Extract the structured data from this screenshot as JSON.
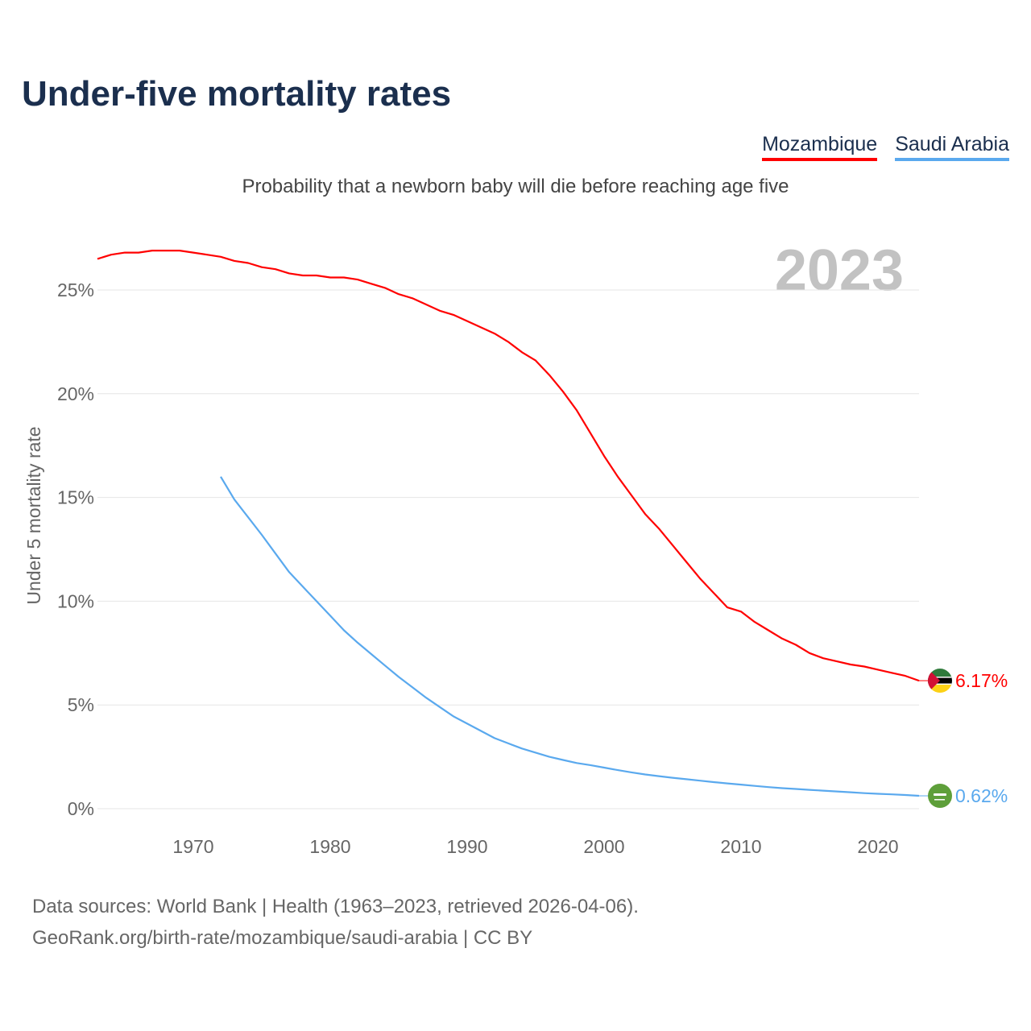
{
  "title": "Under-five mortality rates",
  "subtitle": "Probability that a newborn baby will die before reaching age five",
  "year_label": "2023",
  "footer": {
    "line1": "Data sources: World Bank | Health (1963–2023, retrieved 2026-04-06).",
    "line2": "GeoRank.org/birth-rate/mozambique/saudi-arabia | CC BY"
  },
  "chart_data": {
    "type": "line",
    "title": "Under-five mortality rates",
    "ylabel": "Under 5 mortality rate",
    "xlabel": "",
    "xlim": [
      1963,
      2023
    ],
    "ylim": [
      0,
      27
    ],
    "x_ticks": [
      1970,
      1980,
      1990,
      2000,
      2010,
      2020
    ],
    "y_ticks": [
      0,
      5,
      10,
      15,
      20,
      25
    ],
    "y_tick_labels": [
      "0%",
      "5%",
      "10%",
      "15%",
      "20%",
      "25%"
    ],
    "grid": true,
    "legend_position": "top-right",
    "series": [
      {
        "name": "Mozambique",
        "color": "#ff0000",
        "end_label": "6.17%",
        "start_year": 1963,
        "values": [
          26.5,
          26.7,
          26.8,
          26.8,
          26.9,
          26.9,
          26.9,
          26.8,
          26.7,
          26.6,
          26.4,
          26.3,
          26.1,
          26.0,
          25.8,
          25.7,
          25.7,
          25.6,
          25.6,
          25.5,
          25.3,
          25.1,
          24.8,
          24.6,
          24.3,
          24.0,
          23.8,
          23.5,
          23.2,
          22.9,
          22.5,
          22.0,
          21.6,
          20.9,
          20.1,
          19.2,
          18.1,
          17.0,
          16.0,
          15.1,
          14.2,
          13.5,
          12.7,
          11.9,
          11.1,
          10.4,
          9.7,
          9.5,
          9.0,
          8.6,
          8.2,
          7.9,
          7.5,
          7.25,
          7.1,
          6.95,
          6.85,
          6.7,
          6.55,
          6.4,
          6.17
        ]
      },
      {
        "name": "Saudi Arabia",
        "color": "#5aa9ee",
        "end_label": "0.62%",
        "start_year": 1972,
        "values": [
          16.0,
          14.9,
          14.05,
          13.2,
          12.3,
          11.4,
          10.7,
          10.0,
          9.3,
          8.6,
          8.0,
          7.45,
          6.9,
          6.35,
          5.85,
          5.35,
          4.9,
          4.45,
          4.1,
          3.75,
          3.4,
          3.15,
          2.9,
          2.7,
          2.5,
          2.35,
          2.2,
          2.1,
          1.98,
          1.86,
          1.75,
          1.65,
          1.57,
          1.49,
          1.42,
          1.35,
          1.28,
          1.22,
          1.16,
          1.1,
          1.04,
          0.99,
          0.95,
          0.91,
          0.87,
          0.83,
          0.79,
          0.75,
          0.72,
          0.69,
          0.66,
          0.62
        ]
      }
    ]
  }
}
